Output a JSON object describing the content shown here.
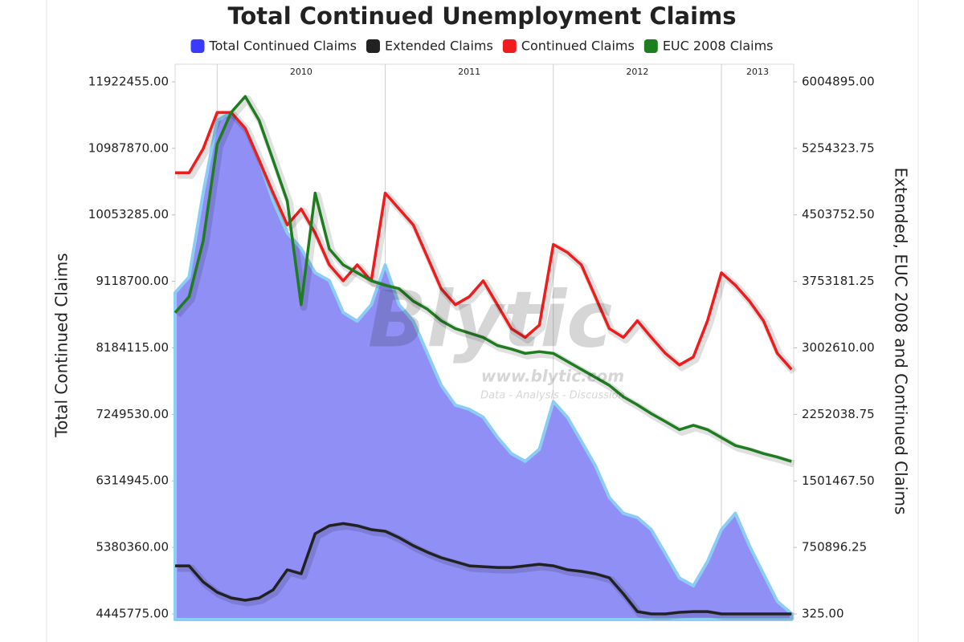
{
  "chart_data": {
    "type": "line",
    "title": "Total Continued Unemployment Claims",
    "ylabel": "Total Continued Claims",
    "y2label": "Extended, EUC 2008 and Continued Claims",
    "watermark": {
      "logo": "Blytic",
      "url": "www.blytic.com",
      "tagline": "Data - Analysis - Discussion"
    },
    "x": [
      2009.75,
      2009.833,
      2009.917,
      2010.0,
      2010.083,
      2010.167,
      2010.25,
      2010.333,
      2010.417,
      2010.5,
      2010.583,
      2010.667,
      2010.75,
      2010.833,
      2010.917,
      2011.0,
      2011.083,
      2011.167,
      2011.25,
      2011.333,
      2011.417,
      2011.5,
      2011.583,
      2011.667,
      2011.75,
      2011.833,
      2011.917,
      2012.0,
      2012.083,
      2012.167,
      2012.25,
      2012.333,
      2012.417,
      2012.5,
      2012.583,
      2012.667,
      2012.75,
      2012.833,
      2012.917,
      2013.0,
      2013.083,
      2013.167,
      2013.25,
      2013.333,
      2013.417
    ],
    "xlim": [
      2009.75,
      2013.43
    ],
    "xticks": [
      2010,
      2011,
      2012,
      2013
    ],
    "ylim": [
      4366800,
      12170500
    ],
    "yticks": [
      {
        "value": 4445775,
        "label": "4445775.00"
      },
      {
        "value": 5380360,
        "label": "5380360.00"
      },
      {
        "value": 6314945,
        "label": "6314945.00"
      },
      {
        "value": 7249530,
        "label": "7249530.00"
      },
      {
        "value": 8184115,
        "label": "8184115.00"
      },
      {
        "value": 9118700,
        "label": "9118700.00"
      },
      {
        "value": 10053285,
        "label": "10053285.00"
      },
      {
        "value": 10987870,
        "label": "10987870.00"
      },
      {
        "value": 11922455,
        "label": "11922455.00"
      }
    ],
    "y2lim": [
      -63070,
      6204140
    ],
    "y2ticks": [
      {
        "value": 325,
        "label": "325.00"
      },
      {
        "value": 750896.25,
        "label": "750896.25"
      },
      {
        "value": 1501467.5,
        "label": "1501467.50"
      },
      {
        "value": 2252038.75,
        "label": "2252038.75"
      },
      {
        "value": 3002610,
        "label": "3002610.00"
      },
      {
        "value": 3753181.25,
        "label": "3753181.25"
      },
      {
        "value": 4503752.5,
        "label": "4503752.50"
      },
      {
        "value": 5254323.75,
        "label": "5254323.75"
      },
      {
        "value": 6004895,
        "label": "6004895.00"
      }
    ],
    "grid": true,
    "series": [
      {
        "name": "Total Continued Claims",
        "color": "#3a3aff",
        "area": true,
        "fill": "#8f8ff5",
        "edge": "#8ccdf5",
        "values": [
          8960000,
          9180000,
          10360000,
          11380000,
          11490000,
          11270000,
          10820000,
          10250000,
          9800000,
          9580000,
          9240000,
          9130000,
          8680000,
          8560000,
          8790000,
          9350000,
          8790000,
          8560000,
          8110000,
          7660000,
          7380000,
          7320000,
          7210000,
          6930000,
          6700000,
          6590000,
          6760000,
          7430000,
          7210000,
          6870000,
          6530000,
          6080000,
          5860000,
          5800000,
          5630000,
          5290000,
          4950000,
          4840000,
          5180000,
          5630000,
          5860000,
          5400000,
          5010000,
          4620000,
          4450000
        ]
      },
      {
        "name": "Extended Claims",
        "color": "#222222",
        "axis": "y2",
        "values": [
          543000,
          543000,
          362000,
          245000,
          181000,
          154000,
          181000,
          272000,
          498000,
          453000,
          906000,
          996000,
          1020000,
          996000,
          951000,
          933000,
          860000,
          770000,
          697000,
          634000,
          589000,
          543000,
          534000,
          525000,
          525000,
          543000,
          561000,
          543000,
          498000,
          480000,
          453000,
          408000,
          227000,
          27000,
          325,
          325,
          18000,
          27000,
          27000,
          325,
          325,
          325,
          325,
          325,
          325
        ]
      },
      {
        "name": "Continued Claims",
        "color": "#ee1c1c",
        "axis": "y2",
        "values": [
          4980000,
          4980000,
          5250000,
          5660000,
          5660000,
          5480000,
          5120000,
          4750000,
          4390000,
          4570000,
          4300000,
          3940000,
          3760000,
          3940000,
          3760000,
          4750000,
          4570000,
          4390000,
          4030000,
          3670000,
          3490000,
          3580000,
          3760000,
          3490000,
          3220000,
          3120000,
          3260000,
          4170000,
          4080000,
          3940000,
          3580000,
          3220000,
          3120000,
          3310000,
          3120000,
          2940000,
          2810000,
          2900000,
          3310000,
          3850000,
          3710000,
          3530000,
          3310000,
          2940000,
          2760000
        ]
      },
      {
        "name": "EUC 2008 Claims",
        "color": "#1e7d1e",
        "axis": "y2",
        "values": [
          3400000,
          3580000,
          4210000,
          5300000,
          5660000,
          5840000,
          5570000,
          5120000,
          4660000,
          3490000,
          4750000,
          4120000,
          3940000,
          3850000,
          3760000,
          3710000,
          3670000,
          3530000,
          3440000,
          3310000,
          3220000,
          3170000,
          3120000,
          3030000,
          2990000,
          2940000,
          2960000,
          2940000,
          2850000,
          2760000,
          2670000,
          2580000,
          2450000,
          2360000,
          2260000,
          2170000,
          2080000,
          2130000,
          2080000,
          1990000,
          1900000,
          1860000,
          1810000,
          1770000,
          1720000
        ]
      }
    ]
  }
}
